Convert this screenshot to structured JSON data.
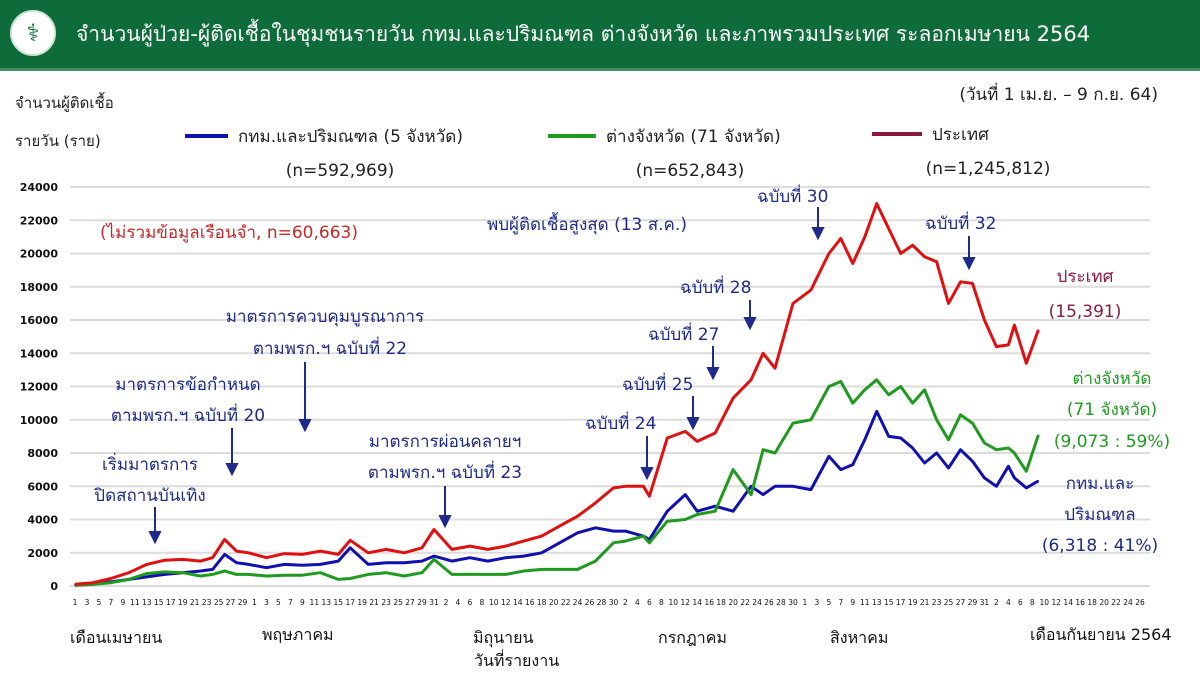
{
  "header": {
    "title": "จำนวนผู้ป่วย-ผู้ติดเชื้อในชุมชนรายวัน กทม.และปริมณฑล ต่างจังหวัด และภาพรวมประเทศ ระลอกเมษายน 2564",
    "logo_icon": "moph-logo"
  },
  "chart_data": {
    "type": "line",
    "title": "จำนวนผู้ป่วย-ผู้ติดเชื้อในชุมชนรายวัน กทม.และปริมณฑล ต่างจังหวัด และภาพรวมประเทศ ระลอกเมษายน 2564",
    "date_range": "(วันที่ 1 เม.ย. – 9 ก.ย. 64)",
    "ylabel_line1": "จำนวนผู้ติดเชื้อ",
    "ylabel_line2": "รายวัน (ราย)",
    "xlabel": "วันที่รายงาน",
    "ylim": [
      0,
      24000
    ],
    "yticks": [
      "0",
      "2000",
      "4000",
      "6000",
      "8000",
      "10000",
      "12000",
      "14000",
      "16000",
      "18000",
      "20000",
      "22000",
      "24000"
    ],
    "xlim": [
      "2021-04-01",
      "2021-09-26"
    ],
    "grid": true,
    "legend_placement": "top",
    "x_ticks": [
      {
        "month": "2021-04",
        "days": [
          1,
          3,
          5,
          7,
          9,
          11,
          13,
          15,
          17,
          19,
          21,
          23,
          25,
          27,
          29
        ]
      },
      {
        "month": "2021-05",
        "days": [
          1,
          3,
          5,
          7,
          9,
          11,
          13,
          15,
          17,
          19,
          21,
          23,
          25,
          27,
          29,
          31
        ]
      },
      {
        "month": "2021-06",
        "days": [
          2,
          4,
          6,
          8,
          10,
          12,
          14,
          16,
          18,
          20,
          22,
          24,
          26,
          28,
          30
        ]
      },
      {
        "month": "2021-07",
        "days": [
          2,
          4,
          6,
          8,
          10,
          12,
          14,
          16,
          18,
          20,
          22,
          24,
          26,
          28,
          30
        ]
      },
      {
        "month": "2021-08",
        "days": [
          1,
          3,
          5,
          7,
          9,
          11,
          13,
          15,
          17,
          19,
          21,
          23,
          25,
          27,
          29,
          31
        ]
      },
      {
        "month": "2021-09",
        "days": [
          2,
          4,
          6,
          8,
          10,
          12,
          14,
          16,
          18,
          20,
          22,
          24,
          26
        ]
      }
    ],
    "month_labels": [
      "เดือนเมษายน",
      "พฤษภาคม",
      "มิถุนายน",
      "กรกฎาคม",
      "สิงหาคม",
      "เดือนกันยายน 2564"
    ],
    "x": [
      "2021-04-01",
      "2021-04-04",
      "2021-04-07",
      "2021-04-10",
      "2021-04-13",
      "2021-04-16",
      "2021-04-19",
      "2021-04-22",
      "2021-04-24",
      "2021-04-26",
      "2021-04-28",
      "2021-04-30",
      "2021-05-03",
      "2021-05-06",
      "2021-05-09",
      "2021-05-12",
      "2021-05-15",
      "2021-05-17",
      "2021-05-20",
      "2021-05-23",
      "2021-05-26",
      "2021-05-29",
      "2021-05-31",
      "2021-06-03",
      "2021-06-06",
      "2021-06-09",
      "2021-06-12",
      "2021-06-15",
      "2021-06-18",
      "2021-06-21",
      "2021-06-24",
      "2021-06-27",
      "2021-06-30",
      "2021-07-02",
      "2021-07-05",
      "2021-07-06",
      "2021-07-09",
      "2021-07-12",
      "2021-07-14",
      "2021-07-17",
      "2021-07-20",
      "2021-07-23",
      "2021-07-25",
      "2021-07-27",
      "2021-07-30",
      "2021-08-02",
      "2021-08-05",
      "2021-08-07",
      "2021-08-09",
      "2021-08-11",
      "2021-08-13",
      "2021-08-15",
      "2021-08-17",
      "2021-08-19",
      "2021-08-21",
      "2021-08-23",
      "2021-08-25",
      "2021-08-27",
      "2021-08-29",
      "2021-08-31",
      "2021-09-02",
      "2021-09-04",
      "2021-09-05",
      "2021-09-07",
      "2021-09-09"
    ],
    "series": [
      {
        "name": "กทม.และปริมณฑล (5 จังหวัด)",
        "n_label": "(n=592,969)",
        "color": "#1010b0",
        "values": [
          50,
          100,
          250,
          400,
          550,
          700,
          800,
          900,
          1000,
          1900,
          1400,
          1300,
          1100,
          1300,
          1250,
          1300,
          1500,
          2300,
          1300,
          1400,
          1400,
          1500,
          1800,
          1500,
          1700,
          1500,
          1700,
          1800,
          2000,
          2600,
          3200,
          3500,
          3300,
          3300,
          3000,
          2800,
          4500,
          5500,
          4500,
          4800,
          4500,
          6000,
          5500,
          6000,
          6000,
          5800,
          7800,
          7000,
          7300,
          8800,
          10500,
          9000,
          8900,
          8300,
          7400,
          8000,
          7100,
          8200,
          7500,
          6500,
          6000,
          7200,
          6500,
          5900,
          6318
        ]
      },
      {
        "name": "ต่างจังหวัด (71 จังหวัด)",
        "n_label": "(n=652,843)",
        "color": "#1f9a1f",
        "values": [
          50,
          100,
          200,
          400,
          750,
          850,
          800,
          600,
          700,
          900,
          700,
          700,
          600,
          650,
          650,
          800,
          400,
          450,
          700,
          800,
          600,
          800,
          1600,
          700,
          700,
          700,
          700,
          900,
          1000,
          1000,
          1000,
          1500,
          2600,
          2700,
          3000,
          2600,
          3900,
          4000,
          4300,
          4500,
          7000,
          5500,
          8200,
          8000,
          9800,
          10000,
          12000,
          12300,
          11000,
          11800,
          12400,
          11500,
          12000,
          11000,
          11800,
          10000,
          8800,
          10300,
          9800,
          8600,
          8200,
          8300,
          8000,
          6900,
          9073
        ]
      },
      {
        "name": "ประเทศ",
        "n_label": "(n=1,245,812)",
        "color": "#e01010",
        "legend_color": "#8b1a3a",
        "values": [
          100,
          200,
          450,
          800,
          1300,
          1550,
          1600,
          1500,
          1700,
          2800,
          2100,
          2000,
          1700,
          1950,
          1900,
          2100,
          1900,
          2750,
          2000,
          2200,
          2000,
          2300,
          3400,
          2200,
          2400,
          2200,
          2400,
          2700,
          3000,
          3600,
          4200,
          5000,
          5900,
          6000,
          6000,
          5400,
          8900,
          9300,
          8700,
          9200,
          11300,
          12400,
          14000,
          13100,
          17000,
          17800,
          20000,
          20900,
          19400,
          21000,
          23000,
          21500,
          20000,
          20500,
          19800,
          19500,
          17000,
          18300,
          18200,
          16000,
          14400,
          14500,
          15700,
          13400,
          15391
        ]
      }
    ],
    "annotations": {
      "prison_note": "(ไม่รวมข้อมูลเรือนจำ, n=60,663)",
      "peak_note": "พบผู้ติดเชื้อสูงสุด (13 ส.ค.)",
      "m22_l1": "มาตรการควบคุมบูรณาการ",
      "m22_l2": "ตามพรก.ฯ ฉบับที่ 22",
      "m20_l1": "มาตรการข้อกำหนด",
      "m20_l2": "ตามพรก.ฯ ฉบับที่ 20",
      "ent_l1": "เริ่มมาตรการ",
      "ent_l2": "ปิดสถานบันเทิง",
      "m23_l1": "มาตรการผ่อนคลายฯ",
      "m23_l2": "ตามพรก.ฯ ฉบับที่ 23",
      "e24": "ฉบับที่ 24",
      "e25": "ฉบับที่ 25",
      "e27": "ฉบับที่ 27",
      "e28": "ฉบับที่ 28",
      "e30": "ฉบับที่ 30",
      "e32": "ฉบับที่ 32",
      "end_national_l1": "ประเทศ",
      "end_national_l2": "(15,391)",
      "end_prov_l1": "ต่างจังหวัด",
      "end_prov_l2": "(71 จังหวัด)",
      "end_prov_l3": "(9,073 : 59%)",
      "end_bkk_l1": "กทม.และ",
      "end_bkk_l2": "ปริมณฑล",
      "end_bkk_l3": "(6,318 : 41%)"
    }
  }
}
